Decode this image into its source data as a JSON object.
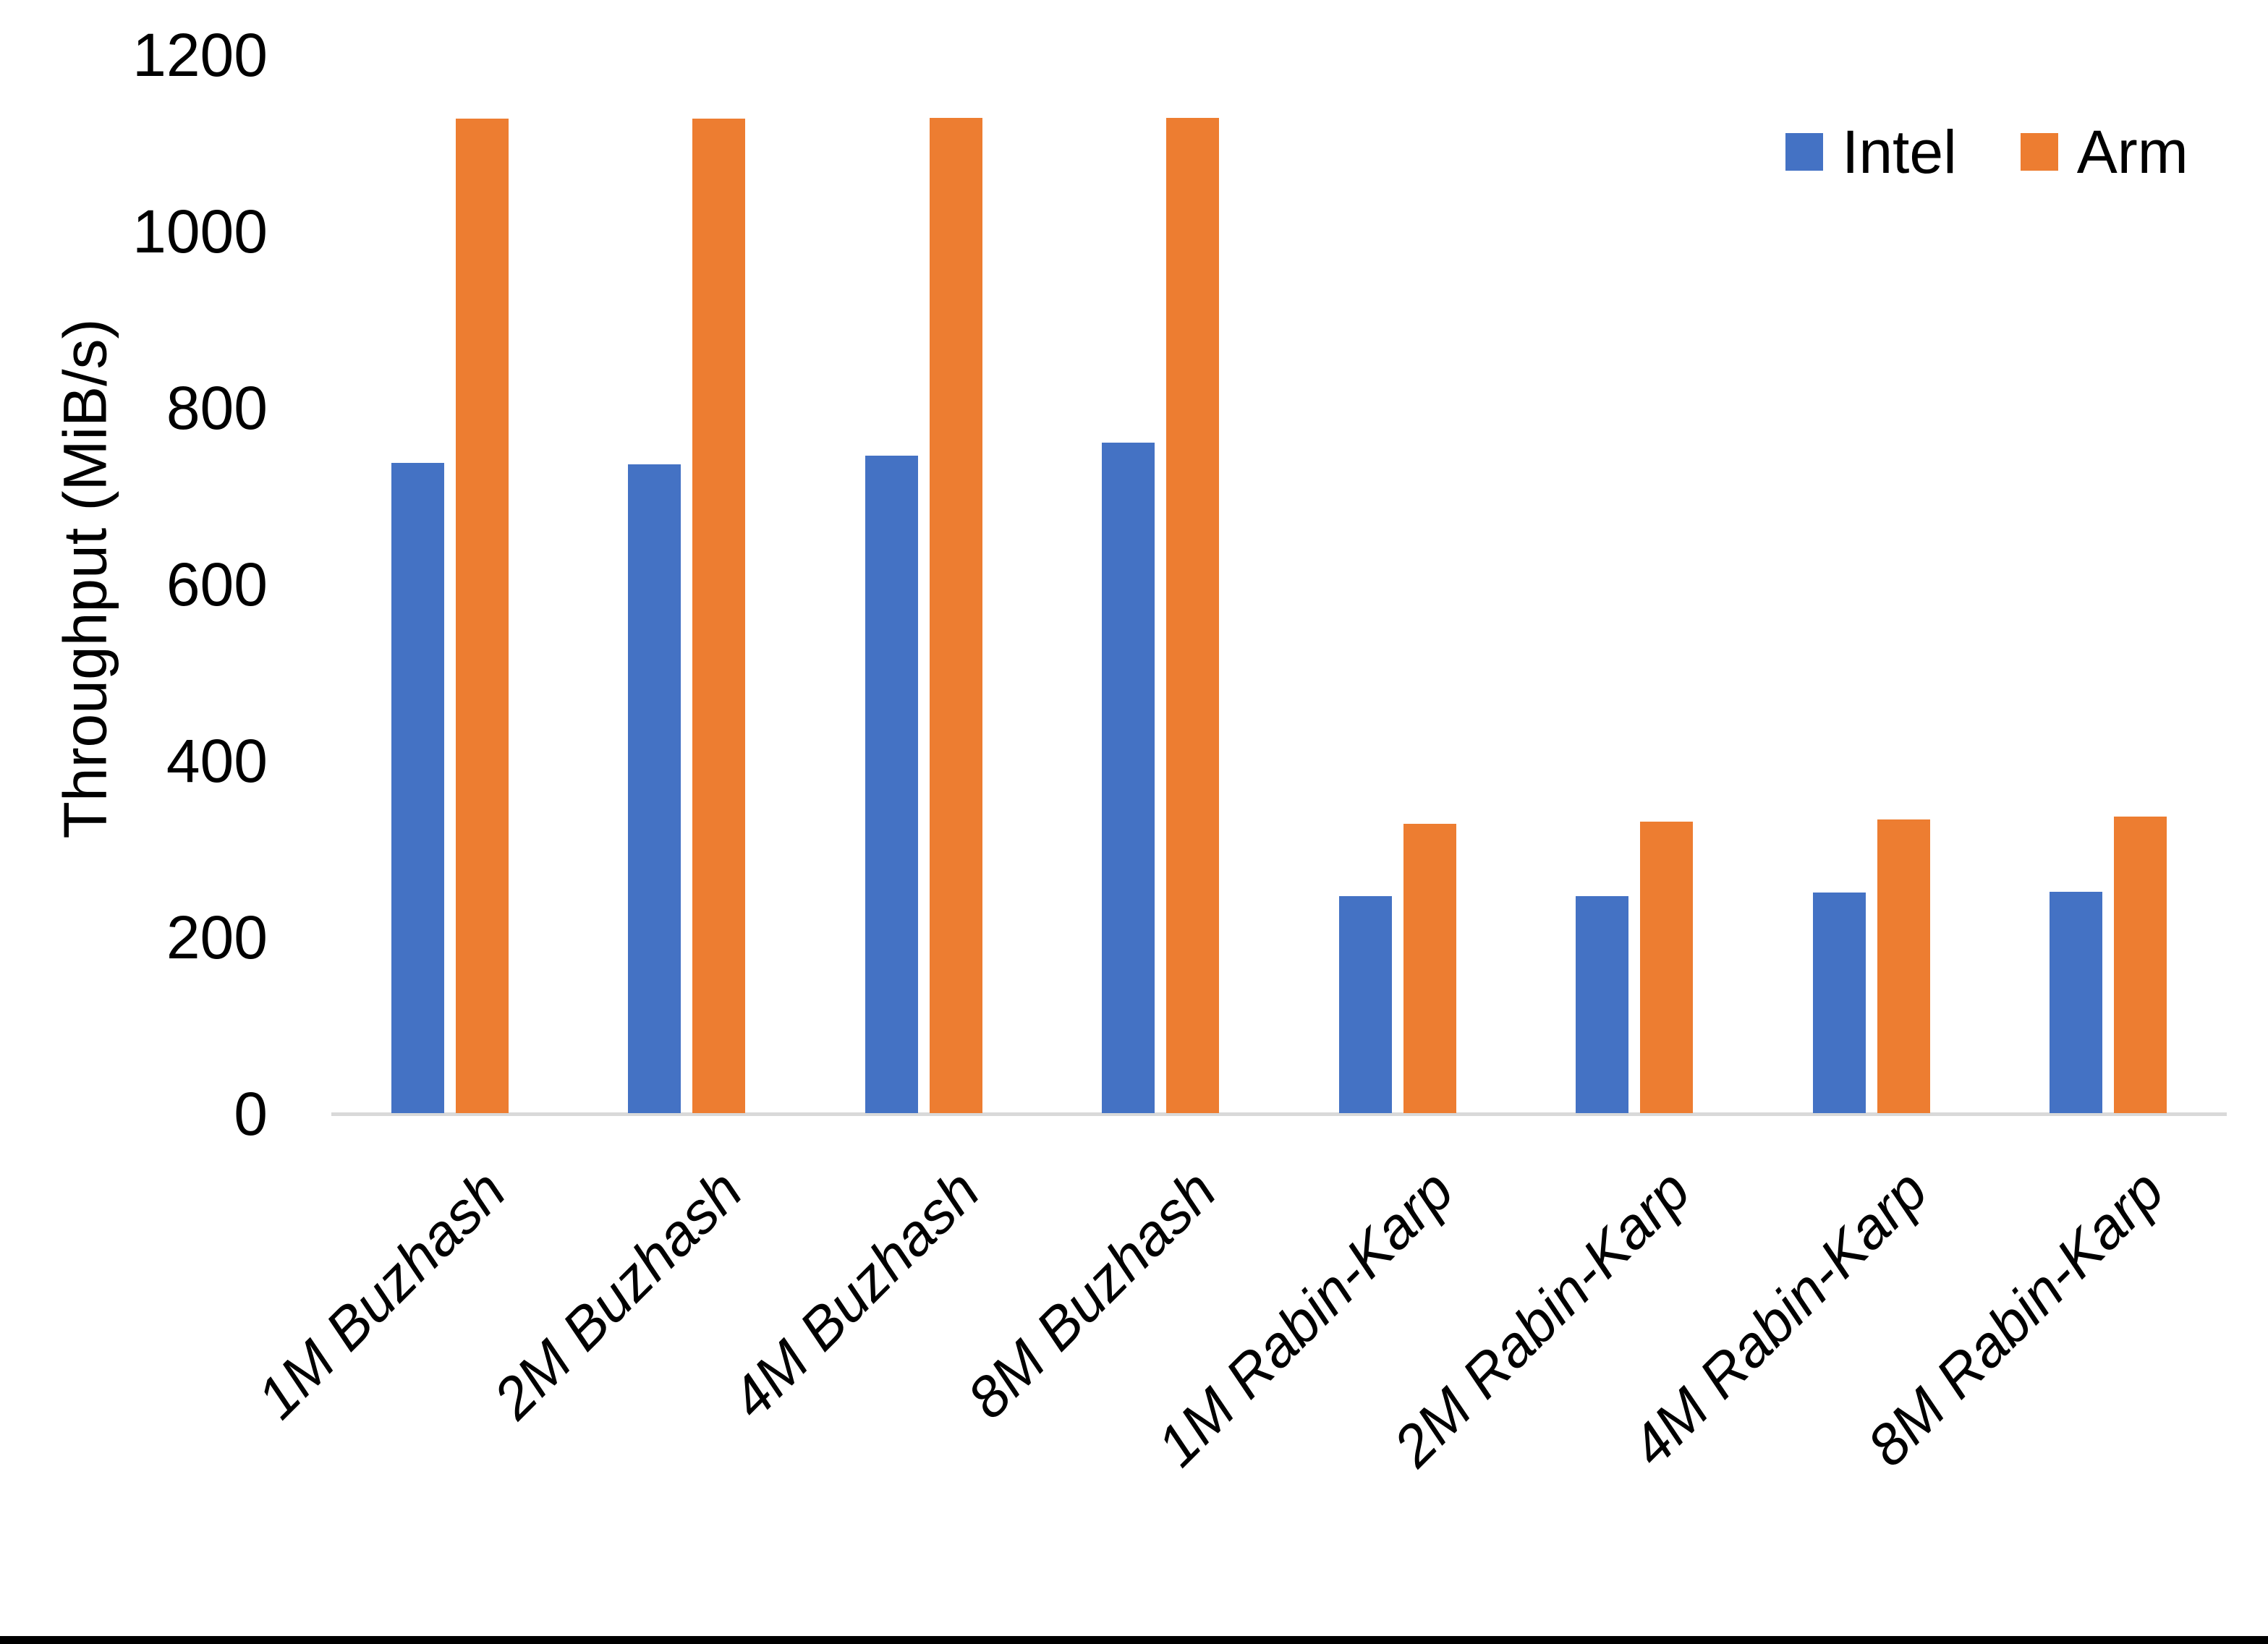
{
  "chart_data": {
    "type": "bar",
    "title": "",
    "xlabel": "",
    "ylabel": "Throughput (MiB/s)",
    "ylim": [
      0,
      1200
    ],
    "yticks": [
      0,
      200,
      400,
      600,
      800,
      1000,
      1200
    ],
    "grid": false,
    "legend_position": "top-right",
    "categories": [
      "1M Buzhash",
      "2M Buzhash",
      "4M Buzhash",
      "8M Buzhash",
      "1M Rabin-Karp",
      "2M Rabin-Karp",
      "4M Rabin-Karp",
      "8M Rabin-Karp"
    ],
    "series": [
      {
        "name": "Intel",
        "color": "#4472C4",
        "values": [
          737,
          735,
          745,
          760,
          246,
          246,
          250,
          251
        ]
      },
      {
        "name": "Arm",
        "color": "#ED7D31",
        "values": [
          1127,
          1127,
          1128,
          1128,
          328,
          330,
          333,
          336
        ]
      }
    ]
  },
  "colors": {
    "axis_line": "#D9D9D9",
    "text": "#000000",
    "background": "#FFFFFF",
    "bottom_border": "#000000"
  }
}
